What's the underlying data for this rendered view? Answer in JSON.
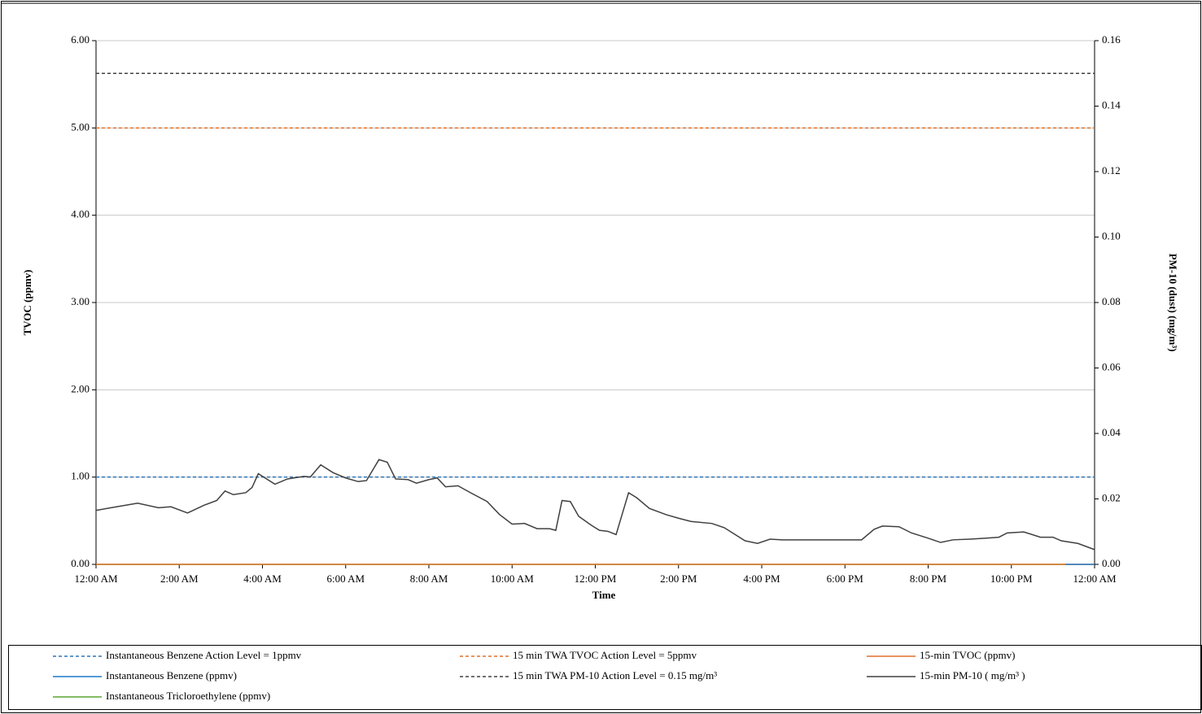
{
  "chart_data": {
    "type": "line",
    "xlabel": "Time",
    "ylabel": "TVOC  (ppmv)",
    "y2label": "PM-10 (dust)  (mg/m³)",
    "xlim": [
      0,
      24
    ],
    "xticks": [
      {
        "value": 0,
        "label": "12:00 AM"
      },
      {
        "value": 2,
        "label": "2:00 AM"
      },
      {
        "value": 4,
        "label": "4:00 AM"
      },
      {
        "value": 6,
        "label": "6:00 AM"
      },
      {
        "value": 8,
        "label": "8:00 AM"
      },
      {
        "value": 10,
        "label": "10:00 AM"
      },
      {
        "value": 12,
        "label": "12:00 PM"
      },
      {
        "value": 14,
        "label": "2:00 PM"
      },
      {
        "value": 16,
        "label": "4:00 PM"
      },
      {
        "value": 18,
        "label": "6:00 PM"
      },
      {
        "value": 20,
        "label": "8:00 PM"
      },
      {
        "value": 22,
        "label": "10:00 PM"
      },
      {
        "value": 24,
        "label": "12:00 AM"
      }
    ],
    "ylim": [
      0,
      6
    ],
    "yticks": [
      {
        "value": 0,
        "label": "0.00"
      },
      {
        "value": 1,
        "label": "1.00"
      },
      {
        "value": 2,
        "label": "2.00"
      },
      {
        "value": 3,
        "label": "3.00"
      },
      {
        "value": 4,
        "label": "4.00"
      },
      {
        "value": 5,
        "label": "5.00"
      },
      {
        "value": 6,
        "label": "6.00"
      }
    ],
    "y2lim": [
      0,
      0.16
    ],
    "y2ticks": [
      {
        "value": 0,
        "label": "0.00"
      },
      {
        "value": 0.02,
        "label": "0.02"
      },
      {
        "value": 0.04,
        "label": "0.04"
      },
      {
        "value": 0.06,
        "label": "0.06"
      },
      {
        "value": 0.08,
        "label": "0.08"
      },
      {
        "value": 0.1,
        "label": "0.10"
      },
      {
        "value": 0.12,
        "label": "0.12"
      },
      {
        "value": 0.14,
        "label": "0.14"
      },
      {
        "value": 0.16,
        "label": "0.16"
      }
    ],
    "grid": true,
    "legend": "bottom",
    "series": [
      {
        "name": "Instantaneous Benzene Action Level = 1ppmv",
        "color": "#2e75b6",
        "dash": true,
        "x": [
          0,
          24
        ],
        "values": [
          1,
          1
        ]
      },
      {
        "name": "15 min TWA TVOC Action Level = 5ppmv",
        "color": "#e0702a",
        "dash": true,
        "x": [
          0,
          24
        ],
        "values": [
          5,
          5
        ]
      },
      {
        "name": "15-min TVOC (ppmv)",
        "color": "#e0702a",
        "dash": false,
        "x": [
          0,
          24
        ],
        "values": [
          0,
          0
        ]
      },
      {
        "name": "Instantaneous Benzene (ppmv)",
        "color": "#1f78c8",
        "dash": false,
        "x": [
          23.3,
          24
        ],
        "values": [
          0,
          0
        ]
      },
      {
        "name": "15 min TWA PM-10 Action Level = 0.15 mg/m³",
        "color": "#404040",
        "dash": true,
        "axis": "y2",
        "x": [
          0,
          24
        ],
        "values": [
          0.15,
          0.15
        ]
      },
      {
        "name": "15-min PM-10 ( mg/m³ )",
        "color": "#404040",
        "dash": false,
        "axis": "y2",
        "x": [
          0,
          0.5,
          1.0,
          1.5,
          1.8,
          2.2,
          2.6,
          2.9,
          3.1,
          3.3,
          3.6,
          3.75,
          3.9,
          4.3,
          4.6,
          5.0,
          5.15,
          5.4,
          5.7,
          6.0,
          6.3,
          6.5,
          6.8,
          7.0,
          7.2,
          7.5,
          7.7,
          8.0,
          8.2,
          8.4,
          8.7,
          9.0,
          9.4,
          9.7,
          10.0,
          10.3,
          10.6,
          10.9,
          11.05,
          11.2,
          11.4,
          11.6,
          11.9,
          12.1,
          12.3,
          12.5,
          12.8,
          13.0,
          13.3,
          13.7,
          14.0,
          14.3,
          14.8,
          15.1,
          15.3,
          15.6,
          15.9,
          16.2,
          16.5,
          17.0,
          17.5,
          18.0,
          18.4,
          18.7,
          18.9,
          19.3,
          19.6,
          20.0,
          20.3,
          20.6,
          21.0,
          21.4,
          21.7,
          21.9,
          22.3,
          22.7,
          23.0,
          23.2,
          23.6,
          24.0
        ],
        "values": [
          0.0165,
          0.0176,
          0.0187,
          0.0173,
          0.0176,
          0.0157,
          0.0181,
          0.0195,
          0.0224,
          0.0213,
          0.0219,
          0.0235,
          0.0277,
          0.0245,
          0.0261,
          0.0269,
          0.0267,
          0.0304,
          0.028,
          0.0264,
          0.0253,
          0.0256,
          0.032,
          0.0312,
          0.0261,
          0.0259,
          0.0248,
          0.0259,
          0.0264,
          0.0237,
          0.024,
          0.0219,
          0.0192,
          0.0152,
          0.0123,
          0.0125,
          0.0109,
          0.0109,
          0.0104,
          0.0195,
          0.0192,
          0.0147,
          0.012,
          0.0104,
          0.0101,
          0.0091,
          0.0219,
          0.0203,
          0.0171,
          0.0152,
          0.0141,
          0.0131,
          0.0125,
          0.0112,
          0.0096,
          0.0072,
          0.0064,
          0.0077,
          0.0075,
          0.0075,
          0.0075,
          0.0075,
          0.0075,
          0.0107,
          0.0117,
          0.0115,
          0.0096,
          0.008,
          0.0067,
          0.0075,
          0.0077,
          0.008,
          0.0083,
          0.0096,
          0.0099,
          0.0083,
          0.0083,
          0.0072,
          0.0064,
          0.0045
        ]
      },
      {
        "name": "Instantaneous Tricloroethylene (ppmv)",
        "color": "#5aa532",
        "dash": false,
        "x": [
          0,
          23.3
        ],
        "values": [
          0,
          0
        ]
      }
    ]
  }
}
